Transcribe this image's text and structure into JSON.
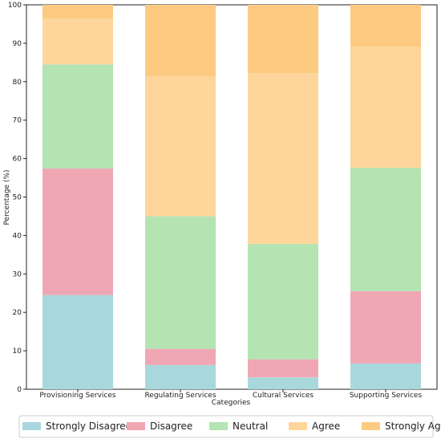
{
  "chart_data": {
    "type": "bar",
    "stacked": true,
    "xlabel": "Categories",
    "ylabel": "Percentage (%)",
    "ylim": [
      0,
      100
    ],
    "yticks": [
      0,
      10,
      20,
      30,
      40,
      50,
      60,
      70,
      80,
      90,
      100
    ],
    "categories": [
      "Provisioning Services",
      "Regulating Services",
      "Cultural Services",
      "Supporting Services"
    ],
    "series": [
      {
        "name": "Strongly Disagree",
        "color": "#a8d8dc",
        "values": [
          24.5,
          6.3,
          3.1,
          6.7
        ]
      },
      {
        "name": "Disagree",
        "color": "#f0a7b4",
        "values": [
          32.9,
          4.2,
          4.7,
          18.8
        ]
      },
      {
        "name": "Neutral",
        "color": "#b3e4b2",
        "values": [
          27.1,
          34.5,
          30.0,
          32.1
        ]
      },
      {
        "name": "Agree",
        "color": "#fed59b",
        "values": [
          11.9,
          36.4,
          44.4,
          31.5
        ]
      },
      {
        "name": "Strongly Agree",
        "color": "#fdca82",
        "values": [
          3.6,
          18.6,
          17.8,
          10.9
        ]
      }
    ],
    "grid": false,
    "legend_position": "bottom"
  }
}
